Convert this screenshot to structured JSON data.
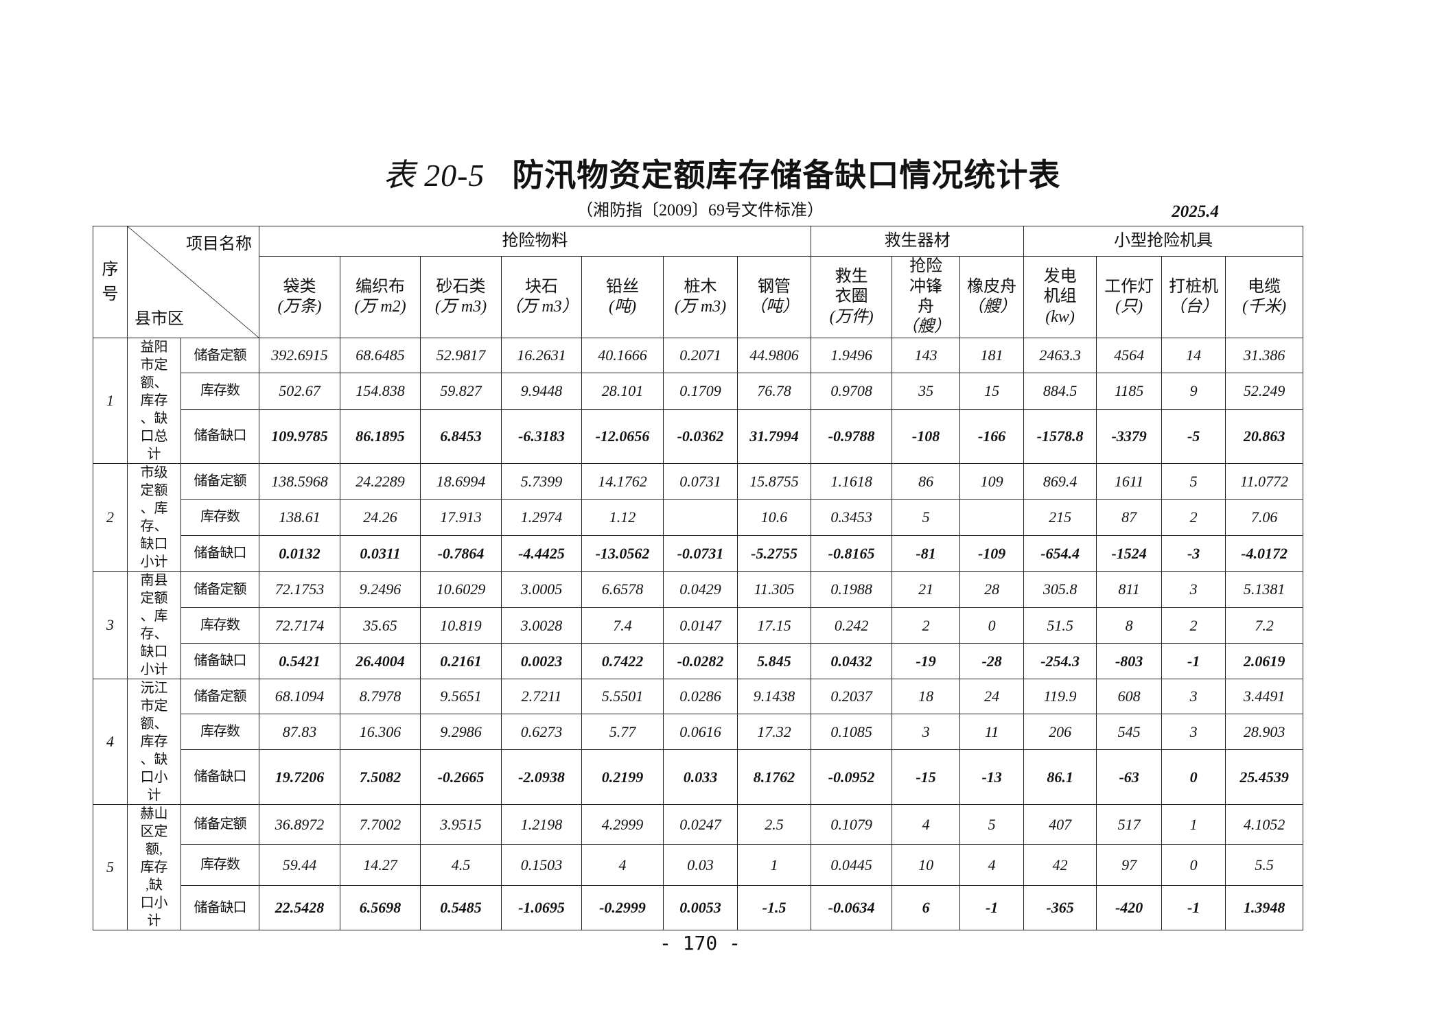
{
  "title": {
    "number": "表 20-5",
    "text": "防汛物资定额库存储备缺口情况统计表"
  },
  "subtitle": "（湘防指〔2009〕69号文件标准）",
  "date": "2025.4",
  "header": {
    "seq": "序号",
    "diag_top": "项目名称",
    "diag_bottom": "县市区",
    "groups": [
      "抢险物料",
      "救生器材",
      "小型抢险机具"
    ],
    "columns": [
      {
        "name": "袋类",
        "unit": "(万条)"
      },
      {
        "name": "编织布",
        "unit": "(万 m2)"
      },
      {
        "name": "砂石类",
        "unit": "(万 m3)"
      },
      {
        "name": "块石",
        "unit": "（万 m3）"
      },
      {
        "name": "铅丝",
        "unit": "(吨)"
      },
      {
        "name": "桩木",
        "unit": "(万 m3)"
      },
      {
        "name": "钢管",
        "unit": "（吨）"
      },
      {
        "name": "救生衣圈",
        "unit": "(万件)"
      },
      {
        "name": "抢险冲锋舟",
        "unit": "（艘）"
      },
      {
        "name": "橡皮舟",
        "unit": "（艘）"
      },
      {
        "name": "发电机组",
        "unit": "(kw)"
      },
      {
        "name": "工作灯",
        "unit": "(只)"
      },
      {
        "name": "打桩机",
        "unit": "（台）"
      },
      {
        "name": "电缆",
        "unit": "(千米)"
      }
    ]
  },
  "row_labels": [
    "储备定额",
    "库存数",
    "储备缺口"
  ],
  "groups": [
    {
      "seq": "1",
      "region": "益阳市定额、库存、缺口总计",
      "rows": [
        [
          "392.6915",
          "68.6485",
          "52.9817",
          "16.2631",
          "40.1666",
          "0.2071",
          "44.9806",
          "1.9496",
          "143",
          "181",
          "2463.3",
          "4564",
          "14",
          "31.386"
        ],
        [
          "502.67",
          "154.838",
          "59.827",
          "9.9448",
          "28.101",
          "0.1709",
          "76.78",
          "0.9708",
          "35",
          "15",
          "884.5",
          "1185",
          "9",
          "52.249"
        ],
        [
          "109.9785",
          "86.1895",
          "6.8453",
          "-6.3183",
          "-12.0656",
          "-0.0362",
          "31.7994",
          "-0.9788",
          "-108",
          "-166",
          "-1578.8",
          "-3379",
          "-5",
          "20.863"
        ]
      ]
    },
    {
      "seq": "2",
      "region": "市级定额、库存、缺口小计",
      "rows": [
        [
          "138.5968",
          "24.2289",
          "18.6994",
          "5.7399",
          "14.1762",
          "0.0731",
          "15.8755",
          "1.1618",
          "86",
          "109",
          "869.4",
          "1611",
          "5",
          "11.0772"
        ],
        [
          "138.61",
          "24.26",
          "17.913",
          "1.2974",
          "1.12",
          "",
          "10.6",
          "0.3453",
          "5",
          "",
          "215",
          "87",
          "2",
          "7.06"
        ],
        [
          "0.0132",
          "0.0311",
          "-0.7864",
          "-4.4425",
          "-13.0562",
          "-0.0731",
          "-5.2755",
          "-0.8165",
          "-81",
          "-109",
          "-654.4",
          "-1524",
          "-3",
          "-4.0172"
        ]
      ]
    },
    {
      "seq": "3",
      "region": "南县定额、库存、缺口小计",
      "rows": [
        [
          "72.1753",
          "9.2496",
          "10.6029",
          "3.0005",
          "6.6578",
          "0.0429",
          "11.305",
          "0.1988",
          "21",
          "28",
          "305.8",
          "811",
          "3",
          "5.1381"
        ],
        [
          "72.7174",
          "35.65",
          "10.819",
          "3.0028",
          "7.4",
          "0.0147",
          "17.15",
          "0.242",
          "2",
          "0",
          "51.5",
          "8",
          "2",
          "7.2"
        ],
        [
          "0.5421",
          "26.4004",
          "0.2161",
          "0.0023",
          "0.7422",
          "-0.0282",
          "5.845",
          "0.0432",
          "-19",
          "-28",
          "-254.3",
          "-803",
          "-1",
          "2.0619"
        ]
      ]
    },
    {
      "seq": "4",
      "region": "沅江市定额、库存、缺口小计",
      "rows": [
        [
          "68.1094",
          "8.7978",
          "9.5651",
          "2.7211",
          "5.5501",
          "0.0286",
          "9.1438",
          "0.2037",
          "18",
          "24",
          "119.9",
          "608",
          "3",
          "3.4491"
        ],
        [
          "87.83",
          "16.306",
          "9.2986",
          "0.6273",
          "5.77",
          "0.0616",
          "17.32",
          "0.1085",
          "3",
          "11",
          "206",
          "545",
          "3",
          "28.903"
        ],
        [
          "19.7206",
          "7.5082",
          "-0.2665",
          "-2.0938",
          "0.2199",
          "0.033",
          "8.1762",
          "-0.0952",
          "-15",
          "-13",
          "86.1",
          "-63",
          "0",
          "25.4539"
        ]
      ]
    },
    {
      "seq": "5",
      "region": "赫山区定额,库存,缺口小计",
      "rows": [
        [
          "36.8972",
          "7.7002",
          "3.9515",
          "1.2198",
          "4.2999",
          "0.0247",
          "2.5",
          "0.1079",
          "4",
          "5",
          "407",
          "517",
          "1",
          "4.1052"
        ],
        [
          "59.44",
          "14.27",
          "4.5",
          "0.1503",
          "4",
          "0.03",
          "1",
          "0.0445",
          "10",
          "4",
          "42",
          "97",
          "0",
          "5.5"
        ],
        [
          "22.5428",
          "6.5698",
          "0.5485",
          "-1.0695",
          "-0.2999",
          "0.0053",
          "-1.5",
          "-0.0634",
          "6",
          "-1",
          "-365",
          "-420",
          "-1",
          "1.3948"
        ]
      ]
    }
  ],
  "page_number": "- 170 -"
}
